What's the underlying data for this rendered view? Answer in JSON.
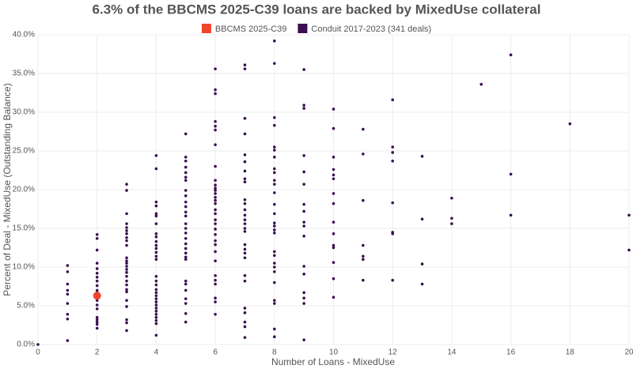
{
  "chart_data": {
    "type": "scatter",
    "title": "6.3% of the BBCMS 2025-C39 loans are backed by MixedUse collateral",
    "x_label": "Number of Loans - MixedUse",
    "y_label": "Percent of Deal - MixedUse (Outstanding Balance)",
    "xlim": [
      0,
      20
    ],
    "ylim": [
      0,
      40
    ],
    "xticks": [
      0,
      2,
      4,
      6,
      8,
      10,
      12,
      14,
      16,
      18,
      20
    ],
    "yticks": [
      {
        "value": 0,
        "label": "0.0%"
      },
      {
        "value": 5,
        "label": "5.0%"
      },
      {
        "value": 10,
        "label": "10.0%"
      },
      {
        "value": 15,
        "label": "15.0%"
      },
      {
        "value": 20,
        "label": "20.0%"
      },
      {
        "value": 25,
        "label": "25.0%"
      },
      {
        "value": 30,
        "label": "30.0%"
      },
      {
        "value": 35,
        "label": "35.0%"
      },
      {
        "value": 40,
        "label": "40.0%"
      }
    ],
    "grid": true,
    "legend": "top",
    "series": [
      {
        "name": "Conduit 2017-2023 (341 deals)",
        "color": "#3b0f4f",
        "size": 1.8,
        "x": [
          0,
          1,
          1,
          1,
          1,
          1,
          1,
          1,
          1,
          1,
          2,
          2,
          2,
          2,
          2,
          2,
          2,
          2,
          2,
          2,
          2,
          2,
          2,
          2,
          2,
          2,
          2,
          2,
          2,
          3,
          3,
          3,
          3,
          3,
          3,
          3,
          3,
          3,
          3,
          3,
          3,
          3,
          3,
          3,
          3,
          3,
          3,
          3,
          3,
          3,
          3,
          3,
          3,
          3,
          3,
          4,
          4,
          4,
          4,
          4,
          4,
          4,
          4,
          4,
          4,
          4,
          4,
          4,
          4,
          4,
          4,
          4,
          4,
          4,
          4,
          4,
          4,
          4,
          4,
          4,
          4,
          4,
          4,
          4,
          4,
          4,
          5,
          5,
          5,
          5,
          5,
          5,
          5,
          5,
          5,
          5,
          5,
          5,
          5,
          5,
          5,
          5,
          5,
          5,
          5,
          5,
          5,
          5,
          5,
          5,
          5,
          5,
          5,
          5,
          5,
          6,
          6,
          6,
          6,
          6,
          6,
          6,
          6,
          6,
          6,
          6,
          6,
          6,
          6,
          6,
          6,
          6,
          6,
          6,
          6,
          6,
          6,
          6,
          6,
          6,
          6,
          6,
          6,
          6,
          6,
          6,
          6,
          7,
          7,
          7,
          7,
          7,
          7,
          7,
          7,
          7,
          7,
          7,
          7,
          7,
          7,
          7,
          7,
          7,
          7,
          7,
          7,
          7,
          7,
          7,
          7,
          7,
          7,
          7,
          7,
          8,
          8,
          8,
          8,
          8,
          8,
          8,
          8,
          8,
          8,
          8,
          8,
          8,
          8,
          8,
          8,
          8,
          8,
          8,
          8,
          8,
          8,
          8,
          8,
          8,
          8,
          8,
          8,
          9,
          9,
          9,
          9,
          9,
          9,
          9,
          9,
          9,
          9,
          9,
          9,
          9,
          9,
          9,
          9,
          9,
          10,
          10,
          10,
          10,
          10,
          10,
          10,
          10,
          10,
          10,
          10,
          10,
          10,
          10,
          10,
          11,
          11,
          11,
          11,
          11,
          11,
          11,
          12,
          12,
          12,
          12,
          12,
          12,
          12,
          12,
          13,
          13,
          13,
          13,
          14,
          14,
          14,
          15,
          16,
          16,
          16,
          18,
          20,
          20
        ],
        "values": [
          0,
          10.2,
          9.4,
          7.8,
          7.0,
          6.5,
          5.3,
          3.9,
          3.3,
          0.5,
          14.2,
          13.7,
          12.2,
          10.5,
          9.8,
          9.2,
          8.7,
          8.2,
          7.6,
          7.0,
          6.7,
          5.7,
          5.1,
          4.6,
          3.5,
          3.2,
          2.9,
          2.6,
          2.1,
          20.7,
          19.9,
          16.9,
          15.6,
          15.1,
          14.7,
          14.3,
          13.8,
          13.4,
          12.8,
          11.2,
          10.8,
          10.5,
          10.1,
          9.7,
          9.3,
          8.8,
          8.2,
          7.7,
          7.1,
          6.8,
          5.7,
          4.9,
          3.2,
          2.8,
          1.8,
          24.4,
          22.7,
          18.4,
          17.9,
          16.9,
          16.6,
          15.6,
          14.3,
          13.9,
          13.3,
          12.8,
          12.4,
          11.9,
          11.4,
          11.0,
          8.8,
          8.2,
          7.7,
          7.1,
          6.7,
          6.3,
          5.9,
          5.5,
          5.1,
          4.7,
          4.3,
          3.9,
          3.5,
          3.1,
          2.7,
          1.2,
          27.2,
          24.2,
          23.7,
          22.9,
          22.2,
          21.6,
          21.2,
          19.9,
          19.2,
          18.4,
          17.8,
          17.1,
          16.6,
          15.6,
          15.0,
          14.4,
          13.7,
          13.0,
          12.4,
          11.8,
          11.3,
          11.0,
          8.2,
          7.8,
          7.0,
          5.9,
          5.3,
          4.0,
          2.9,
          35.6,
          32.9,
          32.4,
          28.8,
          28.2,
          27.7,
          25.8,
          23.0,
          21.2,
          20.6,
          20.2,
          19.9,
          19.5,
          19.0,
          18.6,
          18.2,
          17.4,
          16.9,
          16.1,
          15.6,
          14.9,
          14.2,
          13.4,
          12.9,
          12.0,
          10.8,
          8.9,
          8.3,
          7.8,
          6.0,
          5.5,
          3.9,
          36.1,
          35.6,
          29.2,
          27.2,
          24.5,
          23.6,
          22.4,
          21.4,
          21.0,
          18.7,
          18.2,
          17.4,
          16.7,
          16.1,
          15.6,
          15.0,
          14.6,
          12.9,
          12.3,
          11.8,
          11.2,
          8.9,
          8.2,
          4.7,
          4.1,
          2.9,
          2.3,
          0.9,
          39.2,
          36.3,
          29.3,
          28.3,
          25.5,
          25.1,
          24.2,
          22.7,
          22.2,
          21.2,
          20.7,
          19.6,
          18.1,
          16.9,
          15.7,
          15.3,
          14.8,
          14.4,
          12.0,
          11.5,
          10.5,
          10.0,
          9.4,
          8.0,
          5.7,
          5.3,
          2.0,
          1.0,
          35.5,
          30.9,
          30.5,
          24.4,
          22.3,
          20.7,
          18.1,
          17.2,
          15.8,
          15.3,
          14.0,
          10.1,
          9.1,
          6.7,
          6.0,
          5.3,
          0.6,
          30.4,
          27.9,
          24.2,
          22.6,
          21.9,
          21.4,
          19.5,
          18.2,
          15.8,
          14.3,
          12.8,
          12.5,
          10.6,
          8.5,
          6.1,
          27.8,
          24.6,
          18.6,
          12.8,
          11.4,
          11.0,
          8.3,
          31.6,
          25.5,
          24.8,
          23.7,
          18.3,
          14.5,
          14.3,
          8.3,
          24.3,
          16.2,
          10.4,
          7.8,
          18.9,
          16.3,
          15.6,
          33.6,
          37.4,
          22.0,
          16.7,
          28.5,
          16.7,
          12.2
        ]
      },
      {
        "name": "BBCMS 2025-C39",
        "color": "#f0452a",
        "size": 5,
        "x": [
          2
        ],
        "values": [
          6.3
        ]
      }
    ]
  }
}
